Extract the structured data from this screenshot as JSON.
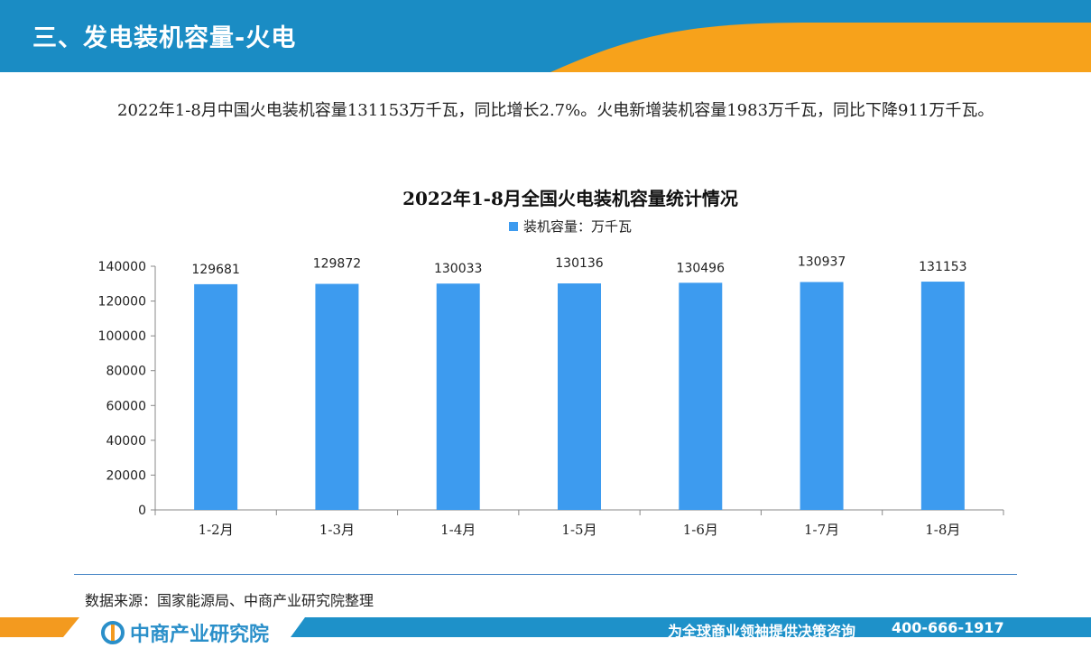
{
  "header": {
    "title": "三、发电装机容量-火电"
  },
  "paragraph": {
    "text": "2022年1-8月中国火电装机容量131153万千瓦，同比增长2.7%。火电新增装机容量1983万千瓦，同比下降911万千瓦。"
  },
  "chart_data": {
    "type": "bar",
    "title": "2022年1-8月全国火电装机容量统计情况",
    "legend": "装机容量：万千瓦",
    "legend_position": "top",
    "categories": [
      "1-2月",
      "1-3月",
      "1-4月",
      "1-5月",
      "1-6月",
      "1-7月",
      "1-8月"
    ],
    "series": [
      {
        "name": "装机容量：万千瓦",
        "values": [
          129681,
          129872,
          130033,
          130136,
          130496,
          130937,
          131153
        ]
      }
    ],
    "ylim": [
      0,
      140000
    ],
    "yticks": [
      0,
      20000,
      40000,
      60000,
      80000,
      100000,
      120000,
      140000
    ],
    "grid": false,
    "bar_color": "#3d9bef"
  },
  "source": {
    "text": "数据来源：国家能源局、中商产业研究院整理"
  },
  "footer": {
    "brand": "中商产业研究院",
    "slogan": "为全球商业领袖提供决策咨询",
    "phone": "400-666-1917"
  },
  "colors": {
    "header_blue": "#1a8cc4",
    "header_orange": "#f7a21b",
    "footer_blue": "#1e91c9",
    "footer_orange": "#f39a1f"
  }
}
